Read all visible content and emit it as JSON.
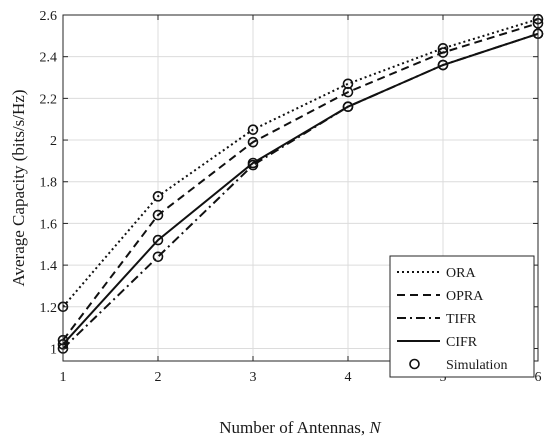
{
  "chart_data": {
    "type": "line",
    "title": "",
    "xlabel_main": "Number of Antennas, ",
    "xlabel_var": "N",
    "ylabel": "Average Capacity (bits/s/Hz)",
    "x": [
      1,
      2,
      3,
      4,
      5,
      6
    ],
    "xlim": [
      1,
      6
    ],
    "ylim": [
      0.94,
      2.6
    ],
    "xticks": [
      "1",
      "2",
      "3",
      "4",
      "5",
      "6"
    ],
    "yticks": [
      {
        "value": 1.0,
        "label": "1"
      },
      {
        "value": 1.2,
        "label": "1.2"
      },
      {
        "value": 1.4,
        "label": "1.4"
      },
      {
        "value": 1.6,
        "label": "1.6"
      },
      {
        "value": 1.8,
        "label": "1.8"
      },
      {
        "value": 2.0,
        "label": "2"
      },
      {
        "value": 2.2,
        "label": "2.2"
      },
      {
        "value": 2.4,
        "label": "2.4"
      },
      {
        "value": 2.6,
        "label": "2.6"
      }
    ],
    "grid": true,
    "legend_position": "bottom-right",
    "series": [
      {
        "name": "ORA",
        "style": "dotted",
        "values": [
          1.2,
          1.73,
          2.05,
          2.27,
          2.44,
          2.58
        ]
      },
      {
        "name": "OPRA",
        "style": "dashed",
        "values": [
          1.04,
          1.64,
          1.99,
          2.23,
          2.42,
          2.56
        ]
      },
      {
        "name": "TIFR",
        "style": "dashdot",
        "values": [
          1.0,
          1.44,
          1.88,
          2.16,
          2.36,
          2.51
        ]
      },
      {
        "name": "CIFR",
        "style": "solid",
        "values": [
          1.02,
          1.52,
          1.89,
          2.16,
          2.36,
          2.51
        ]
      }
    ],
    "simulation": {
      "name": "Simulation",
      "marker": "circle"
    }
  }
}
